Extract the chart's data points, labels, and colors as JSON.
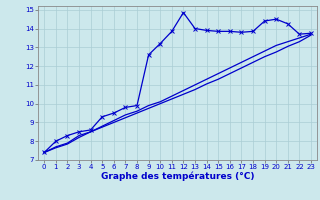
{
  "xlabel": "Graphe des températures (°C)",
  "bg_color": "#cce8ec",
  "grid_color": "#aacdd4",
  "line_color": "#0000cc",
  "xlim": [
    -0.5,
    23.5
  ],
  "ylim": [
    7,
    15.2
  ],
  "xticks": [
    0,
    1,
    2,
    3,
    4,
    5,
    6,
    7,
    8,
    9,
    10,
    11,
    12,
    13,
    14,
    15,
    16,
    17,
    18,
    19,
    20,
    21,
    22,
    23
  ],
  "yticks": [
    7,
    8,
    9,
    10,
    11,
    12,
    13,
    14,
    15
  ],
  "series1_x": [
    0,
    1,
    2,
    3,
    4,
    5,
    6,
    7,
    8,
    9,
    10,
    11,
    12,
    13,
    14,
    15,
    16,
    17,
    18,
    19,
    20,
    21,
    22,
    23
  ],
  "series1_y": [
    7.4,
    8.0,
    8.3,
    8.5,
    8.6,
    9.3,
    9.5,
    9.8,
    9.9,
    12.6,
    13.2,
    13.85,
    14.85,
    14.0,
    13.9,
    13.85,
    13.85,
    13.8,
    13.85,
    14.4,
    14.5,
    14.25,
    13.7,
    13.75
  ],
  "series2_x": [
    0,
    1,
    2,
    3,
    4,
    5,
    6,
    7,
    8,
    9,
    10,
    11,
    12,
    13,
    14,
    15,
    16,
    17,
    18,
    19,
    20,
    21,
    22,
    23
  ],
  "series2_y": [
    7.4,
    7.7,
    7.9,
    8.3,
    8.5,
    8.8,
    9.1,
    9.4,
    9.6,
    9.9,
    10.1,
    10.4,
    10.7,
    11.0,
    11.3,
    11.6,
    11.9,
    12.2,
    12.5,
    12.8,
    13.1,
    13.3,
    13.5,
    13.7
  ],
  "series3_x": [
    0,
    1,
    2,
    3,
    4,
    5,
    6,
    7,
    8,
    9,
    10,
    11,
    12,
    13,
    14,
    15,
    16,
    17,
    18,
    19,
    20,
    21,
    22,
    23
  ],
  "series3_y": [
    7.4,
    7.65,
    7.85,
    8.2,
    8.5,
    8.75,
    9.0,
    9.25,
    9.5,
    9.75,
    10.0,
    10.25,
    10.5,
    10.75,
    11.05,
    11.3,
    11.6,
    11.9,
    12.2,
    12.5,
    12.75,
    13.05,
    13.3,
    13.65
  ]
}
